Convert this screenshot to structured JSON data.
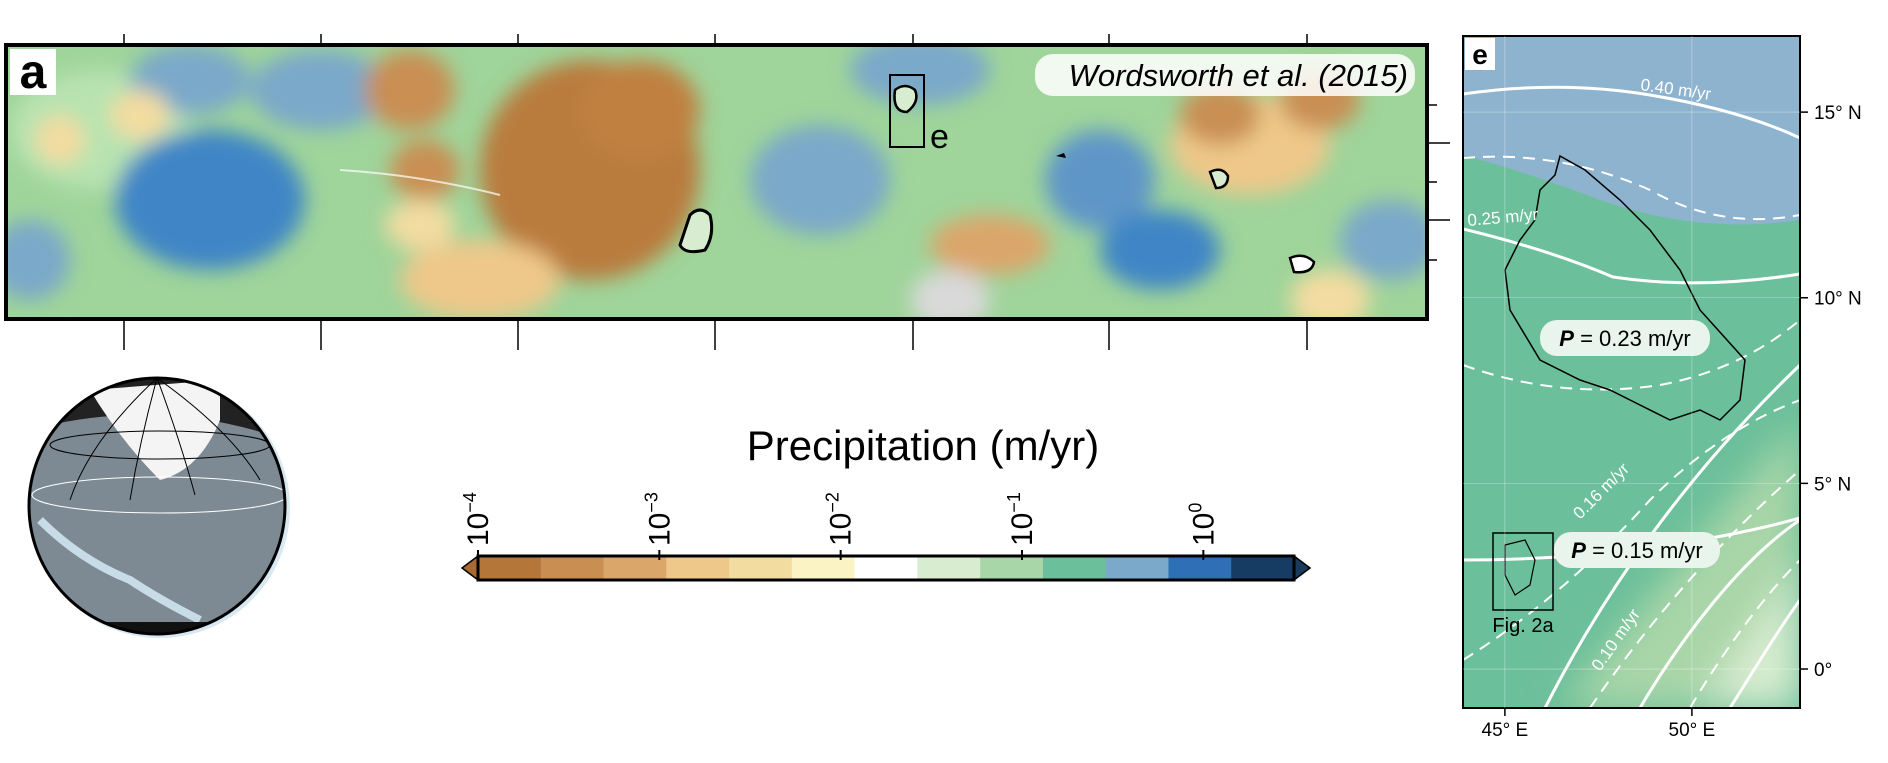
{
  "panel_a": {
    "label": "a",
    "source": "Wordsworth et al. (2015)",
    "inset_label": "e"
  },
  "colorbar": {
    "title": "Precipitation (m/yr)",
    "range": [
      -4,
      0.5
    ],
    "ticks": [
      {
        "value": -4,
        "base": "10",
        "exponent": "−4"
      },
      {
        "value": -3,
        "base": "10",
        "exponent": "−3"
      },
      {
        "value": -2,
        "base": "10",
        "exponent": "−2"
      },
      {
        "value": -1,
        "base": "10",
        "exponent": "−1"
      },
      {
        "value": 0,
        "base": "10",
        "exponent": "0"
      }
    ],
    "colors": [
      "#b5763a",
      "#c98f52",
      "#dba66a",
      "#eec88a",
      "#f3dca0",
      "#fbf3c4",
      "#ffffff",
      "#d8ecd0",
      "#a9d6a8",
      "#6bbf9a",
      "#7aa9c9",
      "#2e6fb5",
      "#173c64"
    ],
    "under_color": "#a86a30",
    "over_color": "#1a3a5c"
  },
  "panel_e": {
    "label": "e",
    "lat_range": [
      -1.05,
      17.05
    ],
    "lon_range": [
      43.88,
      52.89
    ],
    "lat_ticks": [
      {
        "value": 15,
        "label": "15° N"
      },
      {
        "value": 10,
        "label": "10° N"
      },
      {
        "value": 5,
        "label": "5° N"
      },
      {
        "value": 0,
        "label": "0°"
      }
    ],
    "lon_ticks": [
      {
        "value": 45,
        "label": "45° E"
      },
      {
        "value": 50,
        "label": "50° E"
      }
    ],
    "contour_labels": [
      "0.40 m/yr",
      "0.25 m/yr",
      "0.16 m/yr",
      "0.10 m/yr"
    ],
    "annotations": [
      {
        "symbol": "P",
        "text": " = 0.23 m/yr"
      },
      {
        "symbol": "P",
        "text": " = 0.15 m/yr"
      }
    ],
    "box_label": "Fig. 2a"
  }
}
